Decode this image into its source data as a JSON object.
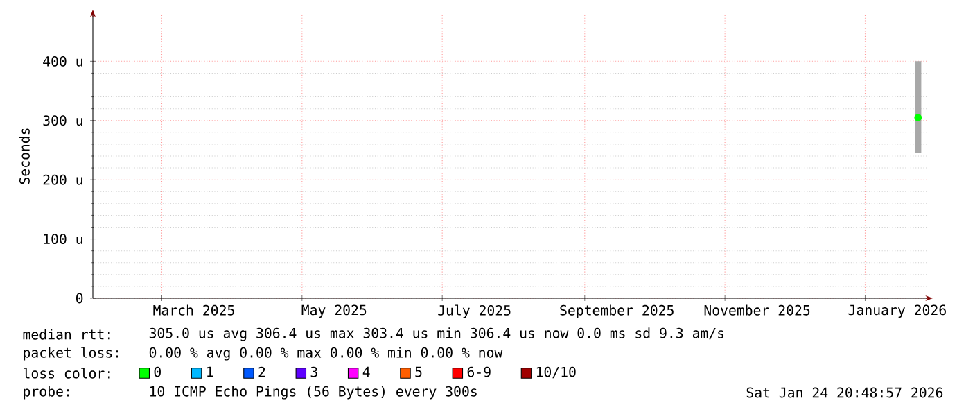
{
  "chart_data": {
    "type": "scatter",
    "marker": "circle",
    "ylabel": "Seconds",
    "legend_title": "loss color:",
    "legend": "bottom",
    "grid": true,
    "x": [
      "2026-01-24"
    ],
    "xlim": [
      "2025-01-30",
      "2026-01-28"
    ],
    "xticks": [
      {
        "value": "2025-03-01",
        "label": null
      },
      {
        "value": "2025-03-15",
        "label": "March 2025"
      },
      {
        "value": "2025-05-01",
        "label": null
      },
      {
        "value": "2025-05-15",
        "label": "May 2025"
      },
      {
        "value": "2025-07-01",
        "label": null
      },
      {
        "value": "2025-07-15",
        "label": "July 2025"
      },
      {
        "value": "2025-09-01",
        "label": null
      },
      {
        "value": "2025-09-15",
        "label": "September 2025"
      },
      {
        "value": "2025-11-01",
        "label": null
      },
      {
        "value": "2025-11-15",
        "label": "November 2025"
      },
      {
        "value": "2026-01-01",
        "label": null
      },
      {
        "value": "2026-01-15",
        "label": "January 2026"
      }
    ],
    "ylim": [
      0,
      480
    ],
    "yticks": [
      0,
      {
        "value": 100,
        "label": "100 u"
      },
      {
        "value": 200,
        "label": "200 u"
      },
      {
        "value": 300,
        "label": "300 u"
      },
      {
        "value": 400,
        "label": "400 u"
      }
    ],
    "series": [
      {
        "type": "bar",
        "color": "#a8a8a8",
        "base": [
          245
        ],
        "values": [
          155
        ]
      },
      {
        "name": "0",
        "color": "#00ff00",
        "values": [
          305
        ]
      },
      {
        "name": "1",
        "color": "#00b8ff",
        "values": [
          null
        ]
      },
      {
        "name": "2",
        "color": "#0059ff",
        "values": [
          null
        ]
      },
      {
        "name": "3",
        "color": "#5e00ff",
        "values": [
          null
        ]
      },
      {
        "name": "4",
        "color": "#ff00ff",
        "values": [
          null
        ]
      },
      {
        "name": "5",
        "color": "#ff5e00",
        "values": [
          null
        ]
      },
      {
        "name": "6-9",
        "color": "#ff0000",
        "values": [
          null
        ]
      },
      {
        "name": "10/10",
        "color": "#a00000",
        "values": [
          null
        ]
      }
    ],
    "annotations": [
      "median rtt:",
      "305.0 us avg  306.4 us max  303.4 us min  306.4 us now  0.0 ms sd  9.3   am/s",
      "packet loss:",
      "0.00 % avg  0.00 % max  0.00 % min  0.00 % now",
      "probe:",
      "10 ICMP Echo Pings (56 Bytes) every 300s",
      "Sat Jan 24 20:48:57 2026"
    ]
  }
}
